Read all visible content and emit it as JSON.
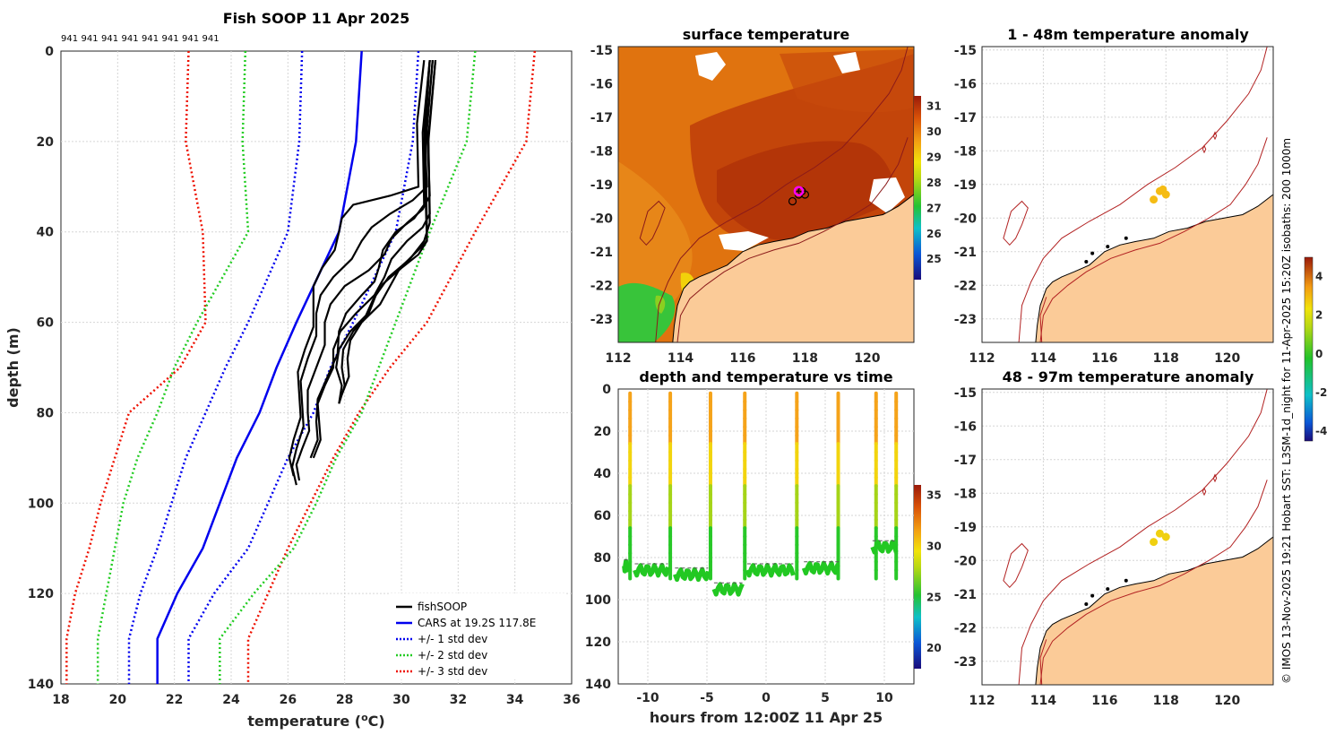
{
  "chart_data": [
    {
      "id": "profile",
      "type": "line",
      "title": "Fish SOOP 11 Apr 2025",
      "top_labels": [
        "941",
        "941",
        "941",
        "941",
        "941",
        "941",
        "941",
        "941"
      ],
      "xlabel": "temperature (",
      "xlabel_sup": "o",
      "xlabel_end": "C)",
      "ylabel": "depth (m)",
      "xlim": [
        18,
        36
      ],
      "ylim": [
        0,
        140
      ],
      "xticks": [
        "18",
        "20",
        "22",
        "24",
        "26",
        "28",
        "30",
        "32",
        "34",
        "36"
      ],
      "yticks": [
        "0",
        "20",
        "40",
        "60",
        "80",
        "100",
        "120",
        "140"
      ],
      "legend": [
        {
          "label": "fishSOOP",
          "color": "#000000",
          "dash": "solid"
        },
        {
          "label": "CARS at 19.2S 117.8E",
          "color": "#0000ee",
          "dash": "solid"
        },
        {
          "label": "+/- 1 std dev",
          "color": "#0000ee",
          "dash": "dot"
        },
        {
          "label": "+/- 2 std dev",
          "color": "#22cc22",
          "dash": "dot"
        },
        {
          "label": "+/- 3 std dev",
          "color": "#ee1100",
          "dash": "dot"
        }
      ],
      "cars_mean": {
        "depth": [
          0,
          20,
          40,
          60,
          70,
          80,
          90,
          100,
          110,
          120,
          130,
          140
        ],
        "temp": [
          28.6,
          28.4,
          27.8,
          26.3,
          25.6,
          25.0,
          24.2,
          23.6,
          23.0,
          22.1,
          21.4,
          21.4
        ]
      },
      "std1": {
        "depth": [
          0,
          20,
          40,
          60,
          70,
          80,
          90,
          100,
          110,
          120,
          130,
          140
        ],
        "temp": [
          [
            26.5,
            26.4,
            26.0,
            24.6,
            23.8,
            23.1,
            22.4,
            21.9,
            21.4,
            20.8,
            20.4,
            20.4
          ],
          [
            30.6,
            30.4,
            29.8,
            28.3,
            27.5,
            26.9,
            26.0,
            25.3,
            24.6,
            23.4,
            22.5,
            22.5
          ]
        ]
      },
      "std2": {
        "depth": [
          0,
          20,
          40,
          60,
          70,
          80,
          90,
          100,
          110,
          120,
          130,
          140
        ],
        "temp": [
          [
            24.5,
            24.4,
            24.6,
            22.8,
            22.0,
            21.4,
            20.7,
            20.2,
            19.9,
            19.6,
            19.3,
            19.3
          ],
          [
            32.6,
            32.3,
            31.0,
            29.8,
            29.2,
            28.6,
            27.7,
            27.0,
            26.2,
            24.8,
            23.6,
            23.6
          ]
        ]
      },
      "std3": {
        "depth": [
          0,
          20,
          40,
          60,
          70,
          80,
          90,
          100,
          110,
          120,
          130,
          140
        ],
        "temp": [
          [
            22.5,
            22.4,
            23.0,
            23.1,
            22.2,
            20.4,
            19.9,
            19.4,
            19.0,
            18.5,
            18.2,
            18.2
          ],
          [
            34.7,
            34.4,
            32.6,
            30.9,
            29.6,
            28.5,
            27.6,
            26.8,
            26.0,
            25.3,
            24.6,
            24.6
          ]
        ]
      },
      "profiles": [
        {
          "depth": [
            2,
            30,
            34,
            40,
            48,
            56,
            66,
            76,
            86,
            94
          ],
          "temp": [
            30.8,
            30.6,
            28.3,
            27.8,
            27.2,
            26.9,
            26.6,
            26.4,
            26.2,
            26.2
          ]
        },
        {
          "depth": [
            2,
            30,
            36,
            42,
            50,
            58,
            68,
            78,
            88,
            96
          ],
          "temp": [
            31.0,
            30.9,
            29.6,
            28.6,
            27.6,
            27.0,
            26.7,
            26.5,
            26.3,
            26.3
          ]
        },
        {
          "depth": [
            2,
            32,
            38,
            45,
            52,
            60,
            70,
            80,
            88,
            95
          ],
          "temp": [
            31.1,
            31.0,
            30.2,
            29.4,
            28.0,
            27.3,
            27.0,
            26.7,
            26.5,
            26.4
          ]
        },
        {
          "depth": [
            2,
            34,
            40,
            48,
            54,
            62,
            72,
            82,
            90
          ],
          "temp": [
            31.0,
            30.8,
            29.8,
            29.2,
            28.6,
            27.8,
            27.4,
            27.0,
            26.8
          ]
        },
        {
          "depth": [
            2,
            36,
            42,
            50,
            58,
            66,
            74,
            82,
            90
          ],
          "temp": [
            31.2,
            31.0,
            30.2,
            29.4,
            28.4,
            27.6,
            27.3,
            27.1,
            26.9
          ]
        },
        {
          "depth": [
            2,
            40,
            44,
            52,
            60,
            68,
            76
          ],
          "temp": [
            31.1,
            30.9,
            30.6,
            29.6,
            28.6,
            28.1,
            27.9
          ]
        },
        {
          "depth": [
            2,
            42,
            48,
            55,
            62,
            70,
            78
          ],
          "temp": [
            31.0,
            30.9,
            30.0,
            29.0,
            28.2,
            27.7,
            27.8
          ]
        },
        {
          "depth": [
            2,
            38,
            46,
            54,
            62,
            70,
            78
          ],
          "temp": [
            31.2,
            31.0,
            30.3,
            29.1,
            28.3,
            27.9,
            27.8
          ]
        }
      ]
    },
    {
      "id": "sst",
      "type": "heatmap",
      "title": "surface temperature",
      "xticks": [
        "112",
        "114",
        "116",
        "118",
        "120"
      ],
      "yticks": [
        "-15",
        "-16",
        "-17",
        "-18",
        "-19",
        "-20",
        "-21",
        "-22",
        "-23"
      ],
      "xlim": [
        112,
        121.5
      ],
      "ylim": [
        -23.7,
        -14.9
      ],
      "colorbar_ticks": [
        "25",
        "26",
        "27",
        "28",
        "29",
        "30",
        "31"
      ],
      "colorbar_range": [
        24.2,
        31.4
      ],
      "stations": {
        "lon": [
          117.6,
          117.8,
          117.9,
          118.0,
          117.8
        ],
        "lat": [
          -19.5,
          -19.3,
          -19.2,
          -19.3,
          -19.2
        ]
      }
    },
    {
      "id": "timeseries",
      "type": "scatter",
      "title": "depth and temperature vs time",
      "xlabel": "hours from 12:00Z 11 Apr 25",
      "xlim": [
        -12.5,
        12.5
      ],
      "ylim": [
        0,
        140
      ],
      "xticks": [
        "-10",
        "-5",
        "0",
        "5",
        "10"
      ],
      "yticks": [
        "0",
        "20",
        "40",
        "60",
        "80",
        "100",
        "120",
        "140"
      ],
      "colorbar_ticks": [
        "20",
        "25",
        "30",
        "35"
      ],
      "colorbar_range": [
        18,
        36
      ],
      "casts": [
        {
          "start": -12.0,
          "end": -11.7,
          "bottom": 84
        },
        {
          "start": -11.1,
          "end": -8.3,
          "bottom": 86
        },
        {
          "start": -7.7,
          "end": -4.9,
          "bottom": 88
        },
        {
          "start": -4.4,
          "end": -2.0,
          "bottom": 95
        },
        {
          "start": -1.6,
          "end": 2.3,
          "bottom": 86
        },
        {
          "start": 3.2,
          "end": 6.2,
          "bottom": 85
        },
        {
          "start": 9.0,
          "end": 11.0,
          "bottom": 75
        }
      ],
      "dives": [
        -11.5,
        -8.1,
        -4.7,
        -1.8,
        2.6,
        6.1,
        9.3,
        11.0
      ]
    },
    {
      "id": "anom_shallow",
      "type": "map",
      "title": "1 - 48m temperature anomaly",
      "xticks": [
        "112",
        "114",
        "116",
        "118",
        "120"
      ],
      "yticks": [
        "-15",
        "-16",
        "-17",
        "-18",
        "-19",
        "-20",
        "-21",
        "-22",
        "-23"
      ],
      "points": {
        "lon": [
          117.6,
          117.8,
          118.0,
          117.9
        ],
        "lat": [
          -19.45,
          -19.2,
          -19.3,
          -19.15
        ],
        "anom": [
          2.6,
          2.8,
          2.7,
          2.5
        ]
      }
    },
    {
      "id": "anom_deep",
      "type": "map",
      "title": "48 - 97m temperature anomaly",
      "xticks": [
        "112",
        "114",
        "116",
        "118",
        "120"
      ],
      "yticks": [
        "-15",
        "-16",
        "-17",
        "-18",
        "-19",
        "-20",
        "-21",
        "-22",
        "-23"
      ],
      "points": {
        "lon": [
          117.6,
          117.8,
          118.0
        ],
        "lat": [
          -19.45,
          -19.2,
          -19.3
        ],
        "anom": [
          3.1,
          3.2,
          3.0
        ]
      }
    }
  ],
  "anomaly_colorbar": {
    "ticks": [
      "4",
      "2",
      "0",
      "-2",
      "-4"
    ],
    "range": [
      -4.5,
      5
    ]
  },
  "credit": "© IMOS 13-Nov-2025 19:21 Hobart SST: L3SM-1d_night for 11-Apr-2025 15:20Z isobaths: 200  1000m",
  "colors": {
    "land": "#fbcb98",
    "coast": "#000000",
    "isobath": "#b22222"
  }
}
